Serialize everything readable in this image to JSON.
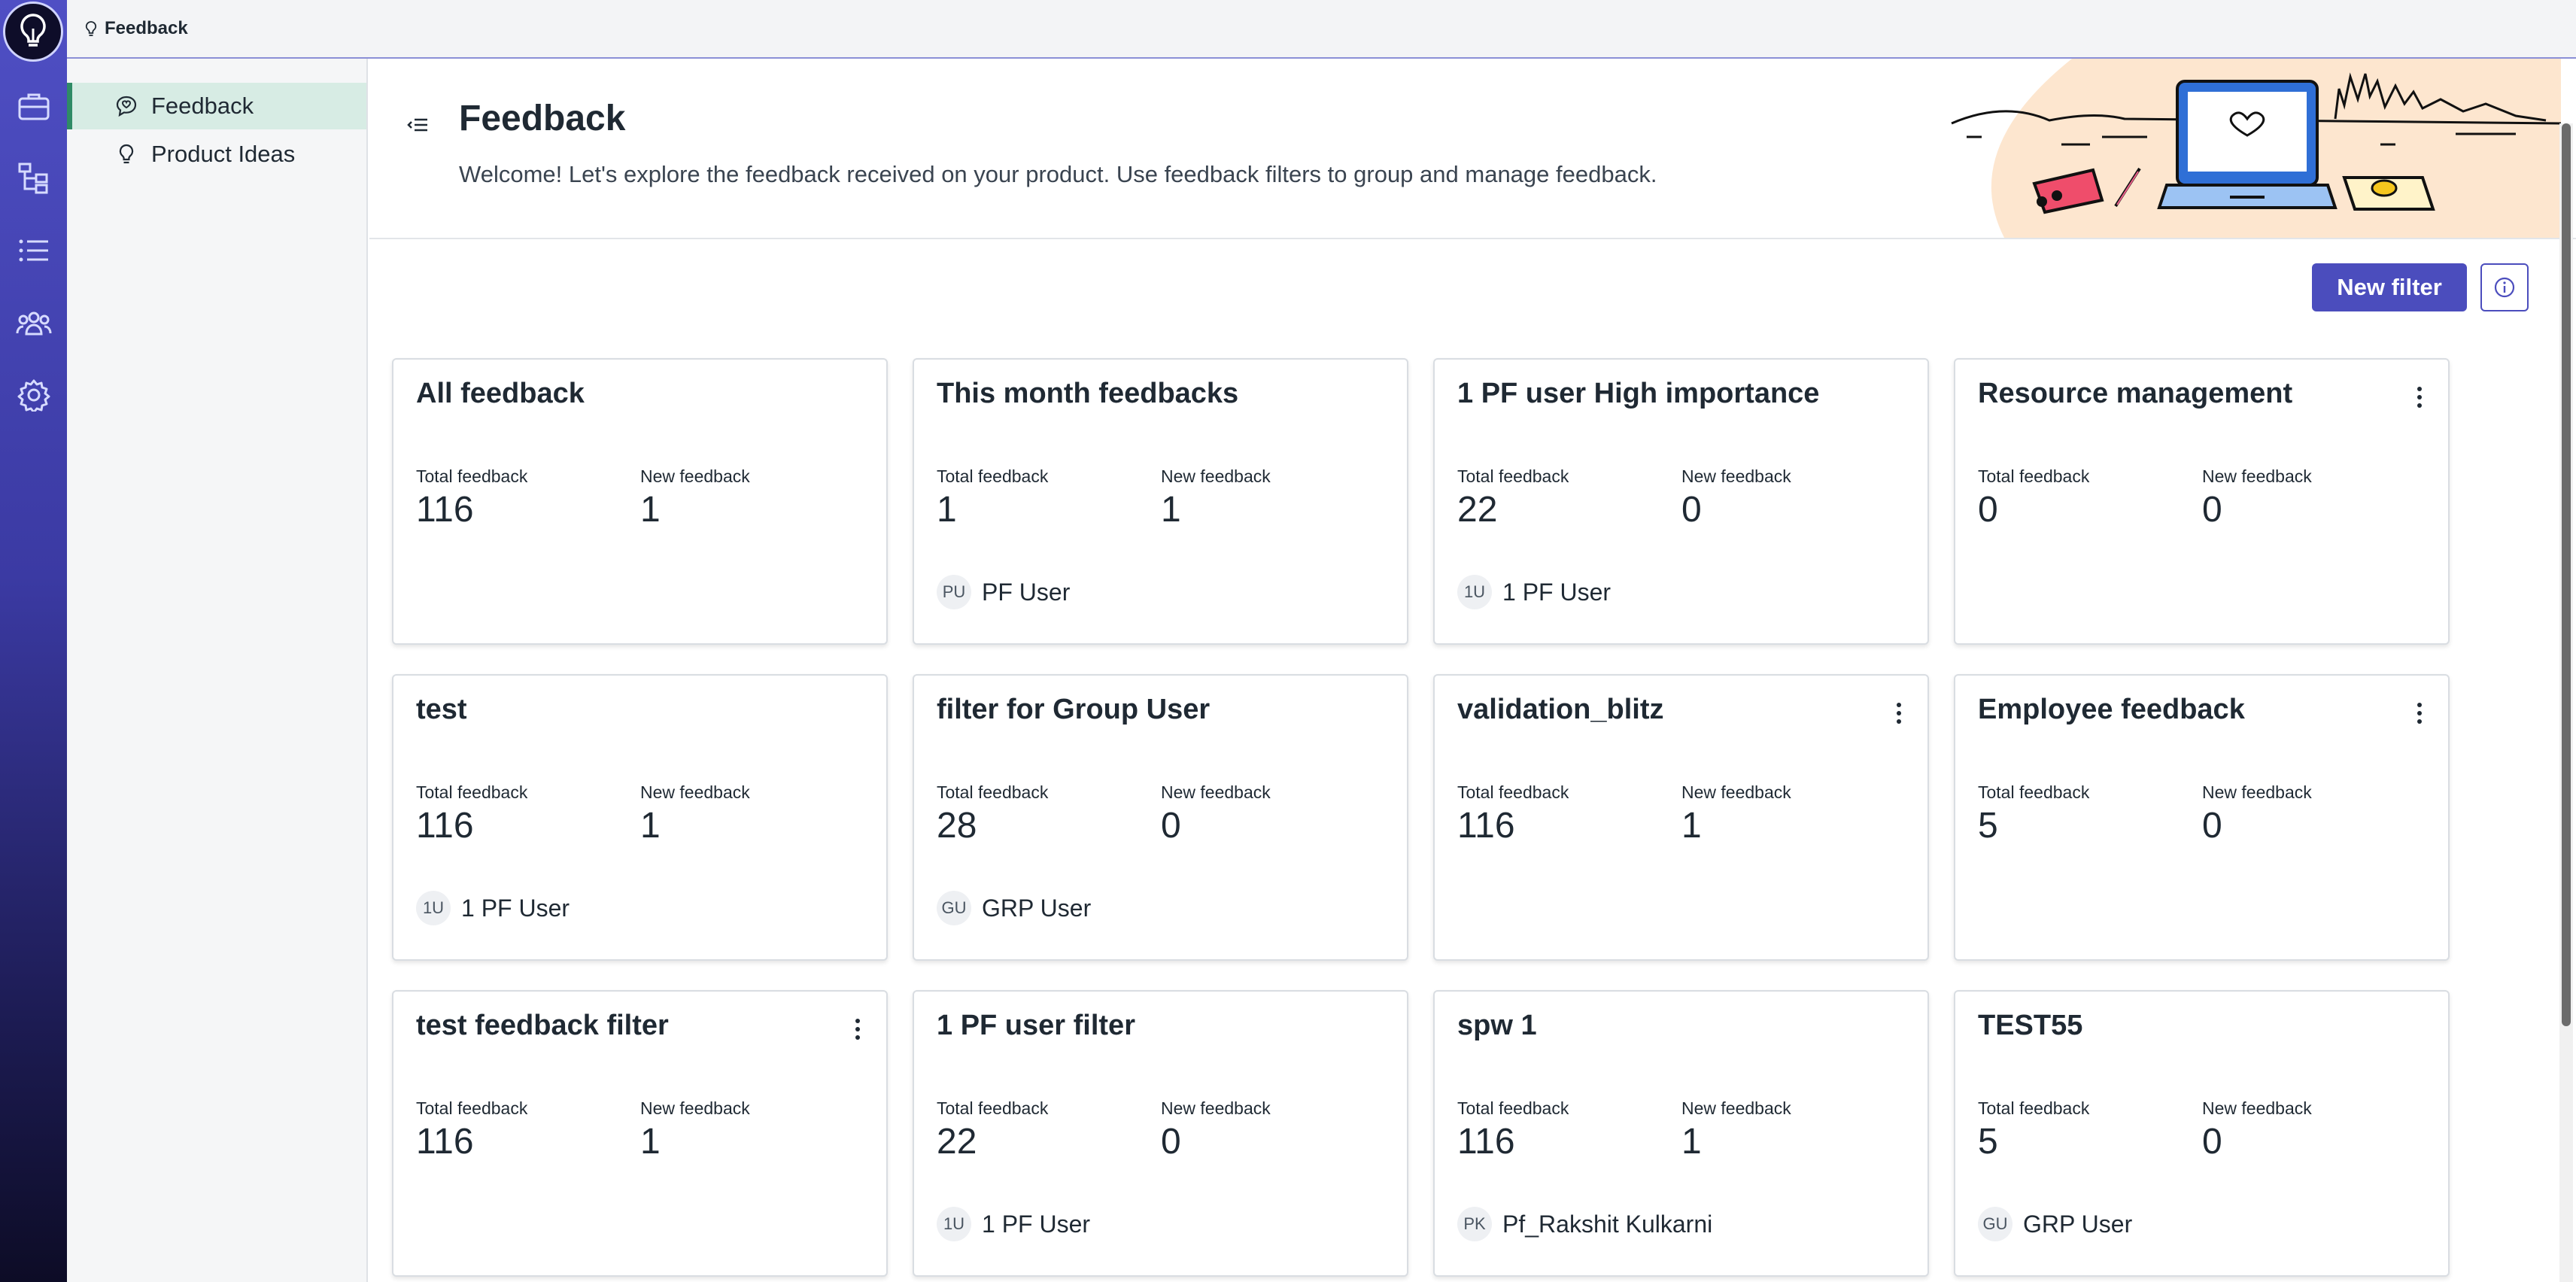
{
  "topbar": {
    "breadcrumb": "Feedback"
  },
  "subnav": {
    "items": [
      {
        "label": "Feedback",
        "icon": "feedback-icon",
        "active": true
      },
      {
        "label": "Product Ideas",
        "icon": "lightbulb-icon",
        "active": false
      }
    ]
  },
  "rail": {
    "icons": [
      "lightbulb-logo-icon",
      "briefcase-icon",
      "hierarchy-icon",
      "list-icon",
      "users-icon",
      "gear-icon"
    ]
  },
  "header": {
    "title": "Feedback",
    "subtitle": "Welcome! Let's explore the feedback received on your product. Use feedback filters to group and manage feedback."
  },
  "actions": {
    "new_filter": "New filter"
  },
  "colors": {
    "accent": "#4b4dbd",
    "active_nav": "#d7ece4",
    "active_border": "#2f8b66"
  },
  "cards": [
    {
      "title": "All feedback",
      "total_label": "Total feedback",
      "total": "116",
      "new_label": "New feedback",
      "new": "1",
      "owner_initials": "",
      "owner": "",
      "menu": false
    },
    {
      "title": "This month feedbacks",
      "total_label": "Total feedback",
      "total": "1",
      "new_label": "New feedback",
      "new": "1",
      "owner_initials": "PU",
      "owner": "PF User",
      "menu": false
    },
    {
      "title": "1 PF user High importance",
      "total_label": "Total feedback",
      "total": "22",
      "new_label": "New feedback",
      "new": "0",
      "owner_initials": "1U",
      "owner": "1 PF User",
      "menu": false
    },
    {
      "title": "Resource management",
      "total_label": "Total feedback",
      "total": "0",
      "new_label": "New feedback",
      "new": "0",
      "owner_initials": "",
      "owner": "",
      "menu": true
    },
    {
      "title": "test",
      "total_label": "Total feedback",
      "total": "116",
      "new_label": "New feedback",
      "new": "1",
      "owner_initials": "1U",
      "owner": "1 PF User",
      "menu": false
    },
    {
      "title": "filter for Group User",
      "total_label": "Total feedback",
      "total": "28",
      "new_label": "New feedback",
      "new": "0",
      "owner_initials": "GU",
      "owner": "GRP User",
      "menu": false
    },
    {
      "title": "validation_blitz",
      "total_label": "Total feedback",
      "total": "116",
      "new_label": "New feedback",
      "new": "1",
      "owner_initials": "",
      "owner": "",
      "menu": true
    },
    {
      "title": "Employee feedback",
      "total_label": "Total feedback",
      "total": "5",
      "new_label": "New feedback",
      "new": "0",
      "owner_initials": "",
      "owner": "",
      "menu": true
    },
    {
      "title": "test feedback filter",
      "total_label": "Total feedback",
      "total": "116",
      "new_label": "New feedback",
      "new": "1",
      "owner_initials": "",
      "owner": "",
      "menu": true
    },
    {
      "title": "1 PF user filter",
      "total_label": "Total feedback",
      "total": "22",
      "new_label": "New feedback",
      "new": "0",
      "owner_initials": "1U",
      "owner": "1 PF User",
      "menu": false
    },
    {
      "title": "spw 1",
      "total_label": "Total feedback",
      "total": "116",
      "new_label": "New feedback",
      "new": "1",
      "owner_initials": "PK",
      "owner": "Pf_Rakshit Kulkarni",
      "menu": false
    },
    {
      "title": "TEST55",
      "total_label": "Total feedback",
      "total": "5",
      "new_label": "New feedback",
      "new": "0",
      "owner_initials": "GU",
      "owner": "GRP User",
      "menu": false
    }
  ]
}
